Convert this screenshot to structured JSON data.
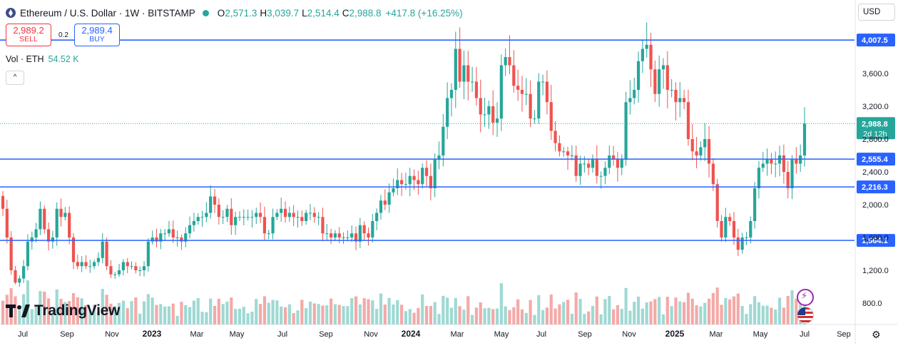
{
  "header": {
    "symbol": "Ethereum / U.S. Dollar · 1W · BITSTAMP",
    "ohlc": {
      "o": "2,571.3",
      "h": "3,039.7",
      "l": "2,514.4",
      "c": "2,988.8",
      "change": "+417.8 (+16.25%)"
    }
  },
  "trade": {
    "sell_price": "2,989.2",
    "sell_label": "SELL",
    "spread": "0.2",
    "buy_price": "2,989.4",
    "buy_label": "BUY"
  },
  "volume_legend": {
    "label": "Vol · ETH",
    "value": "54.52 K"
  },
  "collapse_label": "^",
  "currency": "USD",
  "branding": "TradingView",
  "settings_icon": "gear-icon",
  "colors": {
    "up": "#26a69a",
    "down": "#ef5350",
    "line": "#2962ff",
    "vol_up": "#9fd9d3",
    "vol_down": "#f4a9a7"
  },
  "chart_data": {
    "type": "candlestick",
    "interval": "1W",
    "y_axis": {
      "min": 1000,
      "max": 4300,
      "ticks": [
        800,
        1200,
        1600,
        2000,
        2400,
        2800,
        3200,
        3600
      ],
      "tick_labels": [
        "800.0",
        "1,200.0",
        "1,600.0",
        "2,000.0",
        "2,400.0",
        "2,800.0",
        "3,200.0",
        "3,600.0"
      ]
    },
    "x_axis": {
      "labels": [
        "Jul",
        "Sep",
        "Nov",
        "2023",
        "Mar",
        "May",
        "Jul",
        "Sep",
        "Nov",
        "2024",
        "Mar",
        "May",
        "Jul",
        "Sep",
        "Nov",
        "2025",
        "Mar",
        "May",
        "Jul",
        "Sep"
      ],
      "bold": [
        "2023",
        "2024",
        "2025"
      ]
    },
    "horizontal_lines": [
      {
        "value": 4007.5,
        "label": "4,007.5"
      },
      {
        "value": 2555.4,
        "label": "2,555.4"
      },
      {
        "value": 2216.3,
        "label": "2,216.3"
      },
      {
        "value": 1564.1,
        "label": "1,564.1"
      }
    ],
    "last_price": {
      "value": 2988.8,
      "label": "2,988.8",
      "countdown": "2d 12h"
    },
    "closes": [
      1950,
      1600,
      1200,
      1050,
      1100,
      1250,
      1550,
      1600,
      1700,
      1950,
      1700,
      1550,
      1600,
      1950,
      1850,
      1900,
      1600,
      1300,
      1250,
      1300,
      1250,
      1250,
      1300,
      1350,
      1550,
      1250,
      1150,
      1150,
      1200,
      1300,
      1250,
      1250,
      1200,
      1200,
      1250,
      1550,
      1600,
      1550,
      1650,
      1650,
      1700,
      1600,
      1600,
      1550,
      1650,
      1750,
      1800,
      1850,
      1850,
      1900,
      2100,
      2000,
      1850,
      1850,
      1950,
      1750,
      1850,
      1850,
      1850,
      1850,
      1850,
      1900,
      1850,
      1650,
      1650,
      1850,
      1900,
      1950,
      1850,
      1900,
      1850,
      1850,
      1800,
      1900,
      1900,
      1850,
      1850,
      1650,
      1650,
      1600,
      1650,
      1600,
      1600,
      1600,
      1650,
      1550,
      1750,
      1650,
      1600,
      1800,
      1900,
      2050,
      2000,
      2150,
      2200,
      2300,
      2250,
      2250,
      2350,
      2300,
      2250,
      2450,
      2350,
      2200,
      2550,
      2600,
      2950,
      3300,
      3400,
      3900,
      3500,
      3700,
      3500,
      3500,
      3300,
      3100,
      3100,
      3200,
      3000,
      3050,
      3700,
      3800,
      3700,
      3450,
      3400,
      3350,
      3350,
      3050,
      3050,
      3500,
      3500,
      3250,
      2900,
      2750,
      2650,
      2650,
      2600,
      2600,
      2350,
      2500,
      2500,
      2450,
      2550,
      2350,
      2350,
      2450,
      2600,
      2550,
      2450,
      2550,
      3250,
      3300,
      3400,
      3750,
      3900,
      3950,
      3650,
      3350,
      3650,
      3700,
      3400,
      3400,
      3250,
      3300,
      3250,
      2800,
      2650,
      2600,
      2700,
      2800,
      2500,
      2250,
      1800,
      1600,
      1850,
      1800,
      1600,
      1450,
      1600,
      1600,
      1800,
      2200,
      2450,
      2500,
      2550,
      2500,
      2500,
      2600,
      2400,
      2200,
      2550,
      2500,
      2600,
      2988.8
    ],
    "volume": {
      "up_color": "#9fd9d3",
      "down_color": "#f4a9a7",
      "last": "54.52 K"
    }
  }
}
